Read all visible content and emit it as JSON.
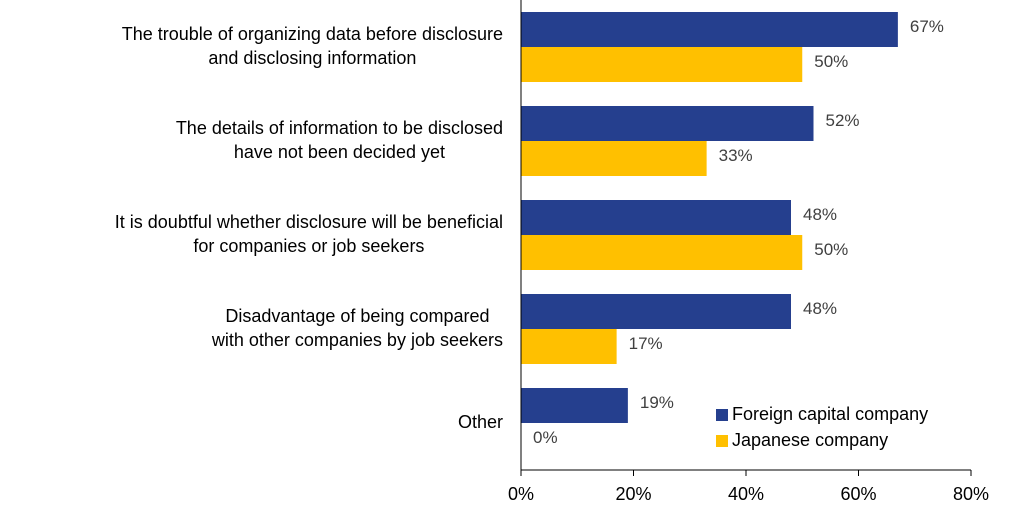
{
  "chart_data": {
    "type": "hbar",
    "categories": [
      [
        "The trouble of organizing data before disclosure",
        "and disclosing information"
      ],
      [
        "The details of information to be disclosed",
        "have not been decided yet"
      ],
      [
        "It is doubtful whether disclosure will be beneficial",
        "for companies or job seekers"
      ],
      [
        "Disadvantage of being compared",
        "with other companies by job seekers"
      ],
      [
        "Other"
      ]
    ],
    "series": [
      {
        "name": "Foreign capital company",
        "color": "#253f8e",
        "values": [
          67,
          52,
          48,
          48,
          19
        ],
        "value_labels": [
          "67%",
          "52%",
          "48%",
          "48%",
          "19%"
        ]
      },
      {
        "name": "Japanese company",
        "color": "#ffc000",
        "values": [
          50,
          33,
          50,
          17,
          0
        ],
        "value_labels": [
          "50%",
          "33%",
          "50%",
          "17%",
          "0%"
        ]
      }
    ],
    "xlim": [
      0,
      80
    ],
    "xticks": [
      {
        "value": 0,
        "label": "0%"
      },
      {
        "value": 20,
        "label": "20%"
      },
      {
        "value": 40,
        "label": "40%"
      },
      {
        "value": 60,
        "label": "60%"
      },
      {
        "value": 80,
        "label": "80%"
      }
    ],
    "legend": "lower-right"
  }
}
